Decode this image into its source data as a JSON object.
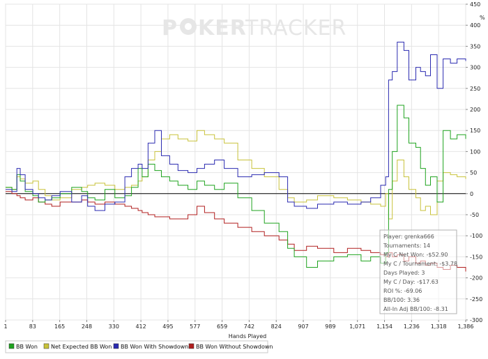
{
  "watermark": {
    "part1": "P",
    "part2": "KER",
    "part3": "TRACKER"
  },
  "colors": {
    "bb_won": "#1fa31f",
    "net_expected": "#c8c23a",
    "with_showdown": "#2a2ab0",
    "without_showdown": "#b01e1e",
    "zero_line": "#000000",
    "grid": "#e4e4e4"
  },
  "stats": {
    "player": "Player: grenka666",
    "tournaments": "Tournaments: 14",
    "net_won": "My C Net Won: -$52.90",
    "per_tournament": "My C / Tournament: -$3.78",
    "days_played": "Days Played: 3",
    "per_day": "My C / Day: -$17.63",
    "roi": "ROI %: -69.06",
    "bb100": "BB/100: 3.36",
    "allin_adj": "All-In Adj BB/100: -8.31"
  },
  "chart_data": {
    "type": "line",
    "xlabel": "Hands Played",
    "ylabel": "",
    "xlim": [
      1,
      1386
    ],
    "ylim": [
      -300,
      450
    ],
    "x_ticks": [
      "1",
      "83",
      "165",
      "248",
      "330",
      "412",
      "495",
      "577",
      "659",
      "742",
      "824",
      "907",
      "989",
      "1,071",
      "1,154",
      "1,236",
      "1,318",
      "1,386"
    ],
    "y_ticks": [
      450,
      400,
      350,
      300,
      250,
      200,
      150,
      100,
      50,
      0,
      -50,
      -100,
      -150,
      -200,
      -250,
      -300
    ],
    "legend_position": "bottom",
    "series": [
      {
        "name": "BB Won",
        "color_key": "bb_won",
        "x": [
          1,
          20,
          35,
          45,
          60,
          83,
          100,
          120,
          140,
          165,
          200,
          230,
          248,
          270,
          300,
          330,
          360,
          380,
          400,
          412,
          430,
          450,
          470,
          495,
          520,
          550,
          577,
          600,
          630,
          659,
          700,
          742,
          780,
          824,
          850,
          870,
          907,
          940,
          989,
          1030,
          1071,
          1100,
          1130,
          1145,
          1154,
          1165,
          1180,
          1200,
          1215,
          1236,
          1250,
          1265,
          1280,
          1300,
          1318,
          1340,
          1360,
          1386
        ],
        "y": [
          15,
          10,
          45,
          30,
          5,
          -5,
          -20,
          -15,
          -10,
          0,
          15,
          5,
          -10,
          -15,
          10,
          -10,
          -5,
          15,
          60,
          40,
          70,
          55,
          40,
          30,
          20,
          10,
          30,
          20,
          10,
          25,
          -10,
          -40,
          -70,
          -90,
          -130,
          -150,
          -175,
          -160,
          -150,
          -145,
          -160,
          -150,
          -165,
          -140,
          10,
          100,
          210,
          180,
          120,
          110,
          60,
          20,
          40,
          -20,
          150,
          130,
          140,
          130
        ]
      },
      {
        "name": "Net Expected BB Won",
        "color_key": "net_expected",
        "x": [
          1,
          20,
          35,
          45,
          60,
          83,
          100,
          120,
          140,
          165,
          200,
          230,
          248,
          270,
          300,
          330,
          360,
          380,
          400,
          412,
          430,
          450,
          470,
          495,
          520,
          550,
          577,
          600,
          630,
          659,
          700,
          742,
          780,
          824,
          850,
          870,
          907,
          940,
          989,
          1030,
          1071,
          1100,
          1130,
          1145,
          1154,
          1165,
          1180,
          1200,
          1215,
          1236,
          1250,
          1265,
          1280,
          1300,
          1318,
          1340,
          1360,
          1386
        ],
        "y": [
          15,
          10,
          40,
          35,
          25,
          30,
          10,
          -5,
          -15,
          -10,
          10,
          15,
          20,
          25,
          20,
          10,
          15,
          20,
          30,
          40,
          80,
          100,
          130,
          140,
          130,
          125,
          150,
          140,
          130,
          120,
          80,
          60,
          40,
          10,
          -10,
          -20,
          -15,
          -5,
          -10,
          -15,
          -20,
          -25,
          -30,
          0,
          -60,
          30,
          80,
          40,
          10,
          -10,
          -40,
          -30,
          -50,
          30,
          50,
          45,
          40,
          35
        ]
      },
      {
        "name": "BB Won With Showdown",
        "color_key": "with_showdown",
        "x": [
          1,
          20,
          35,
          45,
          60,
          83,
          100,
          120,
          140,
          165,
          200,
          230,
          248,
          270,
          300,
          330,
          360,
          380,
          400,
          412,
          430,
          450,
          470,
          495,
          520,
          550,
          577,
          600,
          630,
          659,
          700,
          742,
          780,
          824,
          850,
          870,
          907,
          940,
          989,
          1030,
          1071,
          1100,
          1130,
          1145,
          1154,
          1165,
          1180,
          1200,
          1215,
          1236,
          1250,
          1265,
          1280,
          1300,
          1318,
          1340,
          1360,
          1386
        ],
        "y": [
          10,
          5,
          60,
          45,
          10,
          0,
          -10,
          -15,
          -5,
          5,
          -20,
          -5,
          -30,
          -40,
          -25,
          -20,
          40,
          60,
          70,
          60,
          120,
          150,
          90,
          70,
          55,
          50,
          60,
          70,
          80,
          60,
          40,
          45,
          50,
          40,
          -20,
          -30,
          -35,
          -25,
          -20,
          -25,
          -20,
          -10,
          20,
          40,
          270,
          290,
          360,
          340,
          270,
          300,
          290,
          280,
          330,
          250,
          320,
          310,
          320,
          315
        ]
      },
      {
        "name": "BB Won Without Showdown",
        "color_key": "without_showdown",
        "x": [
          1,
          20,
          35,
          45,
          60,
          83,
          100,
          120,
          140,
          165,
          200,
          230,
          248,
          270,
          300,
          330,
          360,
          380,
          400,
          412,
          430,
          450,
          470,
          495,
          520,
          550,
          577,
          600,
          630,
          659,
          700,
          742,
          780,
          824,
          850,
          870,
          907,
          940,
          989,
          1030,
          1071,
          1100,
          1130,
          1145,
          1154,
          1165,
          1180,
          1200,
          1215,
          1236,
          1250,
          1265,
          1280,
          1300,
          1318,
          1340,
          1360,
          1386
        ],
        "y": [
          5,
          0,
          -5,
          -10,
          -15,
          -10,
          -20,
          -25,
          -30,
          -20,
          -20,
          -15,
          -20,
          -25,
          -20,
          -25,
          -30,
          -35,
          -40,
          -45,
          -50,
          -55,
          -55,
          -60,
          -60,
          -50,
          -30,
          -45,
          -60,
          -70,
          -80,
          -90,
          -100,
          -110,
          -120,
          -135,
          -125,
          -130,
          -140,
          -130,
          -135,
          -140,
          -145,
          -150,
          -140,
          -150,
          -145,
          -160,
          -150,
          -165,
          -160,
          -170,
          -165,
          -175,
          -180,
          -170,
          -175,
          -185
        ]
      }
    ]
  }
}
